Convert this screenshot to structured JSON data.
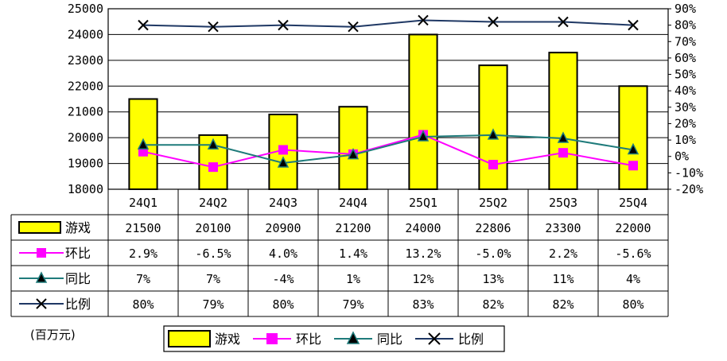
{
  "unit_label": "(百万元)",
  "chart_data": {
    "type": "bar",
    "categories": [
      "24Q1",
      "24Q2",
      "24Q3",
      "24Q4",
      "25Q1",
      "25Q2",
      "25Q3",
      "25Q4"
    ],
    "series": [
      {
        "name": "游戏",
        "type": "bar",
        "axis": "left",
        "color": "#ffff00",
        "values": [
          21500,
          20100,
          20900,
          21200,
          24000,
          22806,
          23300,
          22000
        ],
        "labels": [
          "21500",
          "20100",
          "20900",
          "21200",
          "24000",
          "22806",
          "23300",
          "22000"
        ]
      },
      {
        "name": "环比",
        "type": "line",
        "axis": "right",
        "color": "#ff00ff",
        "marker": "square",
        "values": [
          2.9,
          -6.5,
          4.0,
          1.4,
          13.2,
          -5.0,
          2.2,
          -5.6
        ],
        "labels": [
          "2.9%",
          "-6.5%",
          "4.0%",
          "1.4%",
          "13.2%",
          "-5.0%",
          "2.2%",
          "-5.6%"
        ]
      },
      {
        "name": "同比",
        "type": "line",
        "axis": "right",
        "color": "#1f7b7b",
        "marker": "triangle",
        "values": [
          7,
          7,
          -4,
          1,
          12,
          13,
          11,
          4
        ],
        "labels": [
          "7%",
          "7%",
          "-4%",
          "1%",
          "12%",
          "13%",
          "11%",
          "4%"
        ]
      },
      {
        "name": "比例",
        "type": "line",
        "axis": "right",
        "color": "#1f3864",
        "marker": "x",
        "values": [
          80,
          79,
          80,
          79,
          83,
          82,
          82,
          80
        ],
        "labels": [
          "80%",
          "79%",
          "80%",
          "79%",
          "83%",
          "82%",
          "82%",
          "80%"
        ]
      }
    ],
    "y_left": {
      "min": 18000,
      "max": 25000,
      "step": 1000,
      "ticks": [
        "18000",
        "19000",
        "20000",
        "21000",
        "22000",
        "23000",
        "24000",
        "25000"
      ]
    },
    "y_right": {
      "min": -20,
      "max": 90,
      "step": 10,
      "ticks": [
        "-20%",
        "-10%",
        "0%",
        "10%",
        "20%",
        "30%",
        "40%",
        "50%",
        "60%",
        "70%",
        "80%",
        "90%"
      ]
    },
    "grid": true,
    "legend_position": "bottom"
  }
}
